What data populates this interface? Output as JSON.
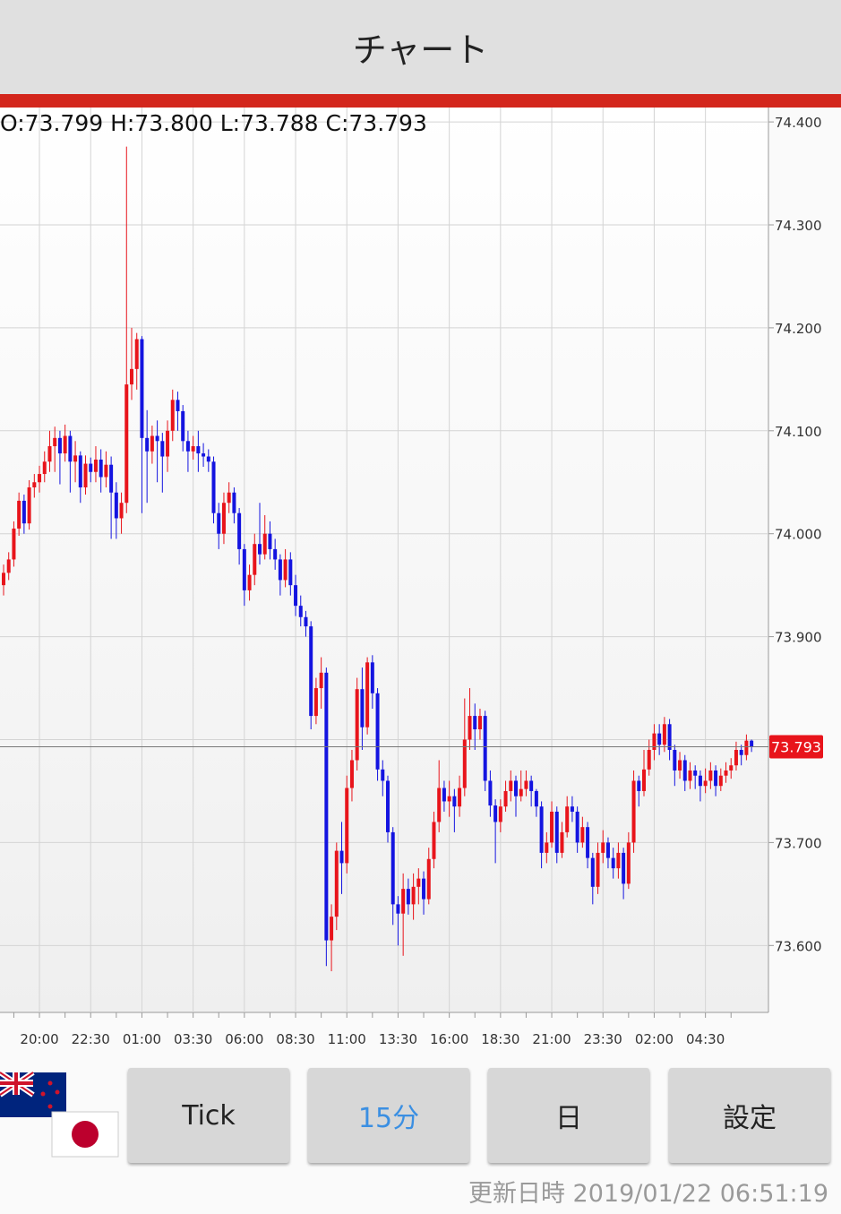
{
  "header": {
    "title": "チャート"
  },
  "chart_data": {
    "type": "candlestick",
    "ohlc_label": "O:73.799 H:73.800 L:73.788 C:73.793",
    "up_color": "#e8141b",
    "down_color": "#1414e0",
    "last_price": 73.793,
    "ylim": [
      73.535,
      74.414
    ],
    "yticks": [
      {
        "value": 73.6,
        "label": "73.600"
      },
      {
        "value": 73.7,
        "label": "73.700"
      },
      {
        "value": 73.8,
        "label": "73.800"
      },
      {
        "value": 73.9,
        "label": "73.900"
      },
      {
        "value": 74.0,
        "label": "74.000"
      },
      {
        "value": 74.1,
        "label": "74.100"
      },
      {
        "value": 74.2,
        "label": "74.200"
      },
      {
        "value": 74.3,
        "label": "74.300"
      },
      {
        "value": 74.4,
        "label": "74.400"
      }
    ],
    "grid": true,
    "categories": [
      null,
      null,
      null,
      null,
      null,
      null,
      null,
      "20:00",
      null,
      null,
      null,
      null,
      null,
      null,
      null,
      null,
      null,
      "22:30",
      null,
      null,
      null,
      null,
      null,
      null,
      null,
      null,
      null,
      "01:00",
      null,
      null,
      null,
      null,
      null,
      null,
      null,
      null,
      null,
      "03:30",
      null,
      null,
      null,
      null,
      null,
      null,
      null,
      null,
      null,
      "06:00",
      null,
      null,
      null,
      null,
      null,
      null,
      null,
      null,
      null,
      "08:30",
      null,
      null,
      null,
      null,
      null,
      null,
      null,
      null,
      null,
      "11:00",
      null,
      null,
      null,
      null,
      null,
      null,
      null,
      null,
      null,
      "13:30",
      null,
      null,
      null,
      null,
      null,
      null,
      null,
      null,
      null,
      "16:00",
      null,
      null,
      null,
      null,
      null,
      null,
      null,
      null,
      null,
      "18:30",
      null,
      null,
      null,
      null,
      null,
      null,
      null,
      null,
      null,
      "21:00",
      null,
      null,
      null,
      null,
      null,
      null,
      null,
      null,
      null,
      "23:30",
      null,
      null,
      null,
      null,
      null,
      null,
      null,
      null,
      null,
      "02:00",
      null,
      null,
      null,
      null,
      null,
      null,
      null,
      null,
      null,
      "04:30",
      null,
      null,
      null,
      null,
      null,
      null,
      null,
      null,
      null
    ],
    "ohlc": [
      [
        73.95,
        73.97,
        73.94,
        73.962
      ],
      [
        73.962,
        73.982,
        73.955,
        73.975
      ],
      [
        73.975,
        74.012,
        73.968,
        74.005
      ],
      [
        74.005,
        74.04,
        73.998,
        74.032
      ],
      [
        74.032,
        74.038,
        74.0,
        74.01
      ],
      [
        74.01,
        74.052,
        74.004,
        74.045
      ],
      [
        74.045,
        74.058,
        74.035,
        74.05
      ],
      [
        74.05,
        74.066,
        74.04,
        74.058
      ],
      [
        74.058,
        74.08,
        74.05,
        74.07
      ],
      [
        74.07,
        74.1,
        74.06,
        74.085
      ],
      [
        74.085,
        74.104,
        74.06,
        74.093
      ],
      [
        74.093,
        74.1,
        74.048,
        74.078
      ],
      [
        74.078,
        74.106,
        74.07,
        74.095
      ],
      [
        74.095,
        74.1,
        74.04,
        74.07
      ],
      [
        74.07,
        74.09,
        74.05,
        74.076
      ],
      [
        74.076,
        74.08,
        74.03,
        74.045
      ],
      [
        74.045,
        74.076,
        74.038,
        74.068
      ],
      [
        74.068,
        74.074,
        74.05,
        74.06
      ],
      [
        74.06,
        74.085,
        74.05,
        74.072
      ],
      [
        74.072,
        74.082,
        74.04,
        74.055
      ],
      [
        74.055,
        74.08,
        74.045,
        74.067
      ],
      [
        74.067,
        74.075,
        73.995,
        74.04
      ],
      [
        74.04,
        74.05,
        73.995,
        74.015
      ],
      [
        74.015,
        74.04,
        74.0,
        74.03
      ],
      [
        74.03,
        74.376,
        74.02,
        74.145
      ],
      [
        74.145,
        74.2,
        74.13,
        74.16
      ],
      [
        74.16,
        74.195,
        74.14,
        74.189
      ],
      [
        74.189,
        74.192,
        74.02,
        74.093
      ],
      [
        74.093,
        74.12,
        74.03,
        74.08
      ],
      [
        74.08,
        74.105,
        74.068,
        74.095
      ],
      [
        74.095,
        74.11,
        74.05,
        74.09
      ],
      [
        74.09,
        74.098,
        74.04,
        74.075
      ],
      [
        74.075,
        74.11,
        74.06,
        74.1
      ],
      [
        74.1,
        74.14,
        74.09,
        74.13
      ],
      [
        74.13,
        74.138,
        74.1,
        74.119
      ],
      [
        74.119,
        74.125,
        74.08,
        74.09
      ],
      [
        74.09,
        74.1,
        74.06,
        74.08
      ],
      [
        74.08,
        74.095,
        74.072,
        74.085
      ],
      [
        74.085,
        74.1,
        74.06,
        74.078
      ],
      [
        74.078,
        74.088,
        74.065,
        74.075
      ],
      [
        74.075,
        74.082,
        74.06,
        74.07
      ],
      [
        74.07,
        74.075,
        74.01,
        74.02
      ],
      [
        74.02,
        74.03,
        73.985,
        74.0
      ],
      [
        74.0,
        74.04,
        73.99,
        74.03
      ],
      [
        74.03,
        74.05,
        74.02,
        74.04
      ],
      [
        74.04,
        74.045,
        74.01,
        74.02
      ],
      [
        74.02,
        74.025,
        73.97,
        73.985
      ],
      [
        73.985,
        73.99,
        73.93,
        73.945
      ],
      [
        73.945,
        73.97,
        73.935,
        73.96
      ],
      [
        73.96,
        74.0,
        73.95,
        73.99
      ],
      [
        73.99,
        74.03,
        73.97,
        73.98
      ],
      [
        73.98,
        74.018,
        73.975,
        74.0
      ],
      [
        74.0,
        74.012,
        73.975,
        73.985
      ],
      [
        73.985,
        73.995,
        73.965,
        73.975
      ],
      [
        73.975,
        73.98,
        73.94,
        73.955
      ],
      [
        73.955,
        73.985,
        73.948,
        73.975
      ],
      [
        73.975,
        73.982,
        73.94,
        73.95
      ],
      [
        73.95,
        73.96,
        73.92,
        73.93
      ],
      [
        73.93,
        73.94,
        73.91,
        73.919
      ],
      [
        73.919,
        73.925,
        73.9,
        73.91
      ],
      [
        73.91,
        73.915,
        73.81,
        73.823
      ],
      [
        73.823,
        73.86,
        73.815,
        73.85
      ],
      [
        73.85,
        73.88,
        73.83,
        73.865
      ],
      [
        73.865,
        73.87,
        73.58,
        73.605
      ],
      [
        73.605,
        73.64,
        73.575,
        73.628
      ],
      [
        73.628,
        73.7,
        73.615,
        73.692
      ],
      [
        73.692,
        73.72,
        73.65,
        73.68
      ],
      [
        73.68,
        73.765,
        73.67,
        73.753
      ],
      [
        73.753,
        73.79,
        73.74,
        73.78
      ],
      [
        73.78,
        73.86,
        73.77,
        73.849
      ],
      [
        73.849,
        73.87,
        73.79,
        73.812
      ],
      [
        73.812,
        73.88,
        73.805,
        73.875
      ],
      [
        73.875,
        73.882,
        73.83,
        73.845
      ],
      [
        73.845,
        73.85,
        73.76,
        73.771
      ],
      [
        73.771,
        73.78,
        73.745,
        73.76
      ],
      [
        73.76,
        73.765,
        73.7,
        73.71
      ],
      [
        73.71,
        73.715,
        73.62,
        73.64
      ],
      [
        73.64,
        73.648,
        73.6,
        73.631
      ],
      [
        73.631,
        73.67,
        73.59,
        73.655
      ],
      [
        73.655,
        73.665,
        73.63,
        73.64
      ],
      [
        73.64,
        73.67,
        73.625,
        73.657
      ],
      [
        73.657,
        73.675,
        73.64,
        73.665
      ],
      [
        73.665,
        73.672,
        73.63,
        73.645
      ],
      [
        73.645,
        73.695,
        73.64,
        73.684
      ],
      [
        73.684,
        73.73,
        73.675,
        73.72
      ],
      [
        73.72,
        73.78,
        73.71,
        73.753
      ],
      [
        73.753,
        73.76,
        73.73,
        73.74
      ],
      [
        73.74,
        73.76,
        73.725,
        73.745
      ],
      [
        73.745,
        73.752,
        73.71,
        73.735
      ],
      [
        73.735,
        73.765,
        73.725,
        73.753
      ],
      [
        73.753,
        73.84,
        73.745,
        73.8
      ],
      [
        73.8,
        73.85,
        73.79,
        73.823
      ],
      [
        73.823,
        73.835,
        73.79,
        73.81
      ],
      [
        73.81,
        73.83,
        73.8,
        73.823
      ],
      [
        73.823,
        73.828,
        73.75,
        73.76
      ],
      [
        73.76,
        73.77,
        73.725,
        73.736
      ],
      [
        73.736,
        73.742,
        73.68,
        73.72
      ],
      [
        73.72,
        73.742,
        73.71,
        73.735
      ],
      [
        73.735,
        73.76,
        73.73,
        73.75
      ],
      [
        73.75,
        73.77,
        73.74,
        73.76
      ],
      [
        73.76,
        73.765,
        73.725,
        73.745
      ],
      [
        73.745,
        73.77,
        73.74,
        73.752
      ],
      [
        73.752,
        73.77,
        73.745,
        73.76
      ],
      [
        73.76,
        73.765,
        73.735,
        73.75
      ],
      [
        73.75,
        73.752,
        73.725,
        73.735
      ],
      [
        73.735,
        73.74,
        73.675,
        73.69
      ],
      [
        73.69,
        73.71,
        73.68,
        73.7
      ],
      [
        73.7,
        73.74,
        73.695,
        73.73
      ],
      [
        73.73,
        73.735,
        73.68,
        73.69
      ],
      [
        73.69,
        73.72,
        73.685,
        73.71
      ],
      [
        73.71,
        73.745,
        73.705,
        73.735
      ],
      [
        73.735,
        73.745,
        73.72,
        73.73
      ],
      [
        73.73,
        73.735,
        73.69,
        73.7
      ],
      [
        73.7,
        73.725,
        73.695,
        73.715
      ],
      [
        73.715,
        73.72,
        73.675,
        73.685
      ],
      [
        73.685,
        73.69,
        73.64,
        73.657
      ],
      [
        73.657,
        73.7,
        73.65,
        73.69
      ],
      [
        73.69,
        73.712,
        73.68,
        73.7
      ],
      [
        73.7,
        73.705,
        73.675,
        73.685
      ],
      [
        73.685,
        73.695,
        73.665,
        73.675
      ],
      [
        73.675,
        73.7,
        73.665,
        73.69
      ],
      [
        73.69,
        73.695,
        73.645,
        73.66
      ],
      [
        73.66,
        73.71,
        73.655,
        73.7
      ],
      [
        73.7,
        73.77,
        73.69,
        73.76
      ],
      [
        73.76,
        73.765,
        73.735,
        73.75
      ],
      [
        73.75,
        73.79,
        73.745,
        73.771
      ],
      [
        73.771,
        73.8,
        73.765,
        73.79
      ],
      [
        73.79,
        73.815,
        73.78,
        73.806
      ],
      [
        73.806,
        73.815,
        73.785,
        73.795
      ],
      [
        73.795,
        73.822,
        73.788,
        73.815
      ],
      [
        73.815,
        73.82,
        73.78,
        73.79
      ],
      [
        73.79,
        73.795,
        73.755,
        73.77
      ],
      [
        73.77,
        73.788,
        73.762,
        73.78
      ],
      [
        73.78,
        73.785,
        73.75,
        73.76
      ],
      [
        73.76,
        73.778,
        73.752,
        73.77
      ],
      [
        73.77,
        73.775,
        73.752,
        73.765
      ],
      [
        73.765,
        73.77,
        73.74,
        73.755
      ],
      [
        73.755,
        73.772,
        73.748,
        73.76
      ],
      [
        73.76,
        73.778,
        73.752,
        73.77
      ],
      [
        73.77,
        73.775,
        73.745,
        73.755
      ],
      [
        73.755,
        73.772,
        73.75,
        73.765
      ],
      [
        73.765,
        73.778,
        73.758,
        73.77
      ],
      [
        73.77,
        73.782,
        73.762,
        73.775
      ],
      [
        73.775,
        73.798,
        73.77,
        73.79
      ],
      [
        73.79,
        73.795,
        73.775,
        73.785
      ],
      [
        73.785,
        73.805,
        73.78,
        73.799
      ],
      [
        73.799,
        73.8,
        73.788,
        73.793
      ]
    ]
  },
  "buttons": [
    "Tick",
    "15分",
    "日",
    "設定"
  ],
  "footer": "更新日時 2019/01/22 06:51:19"
}
